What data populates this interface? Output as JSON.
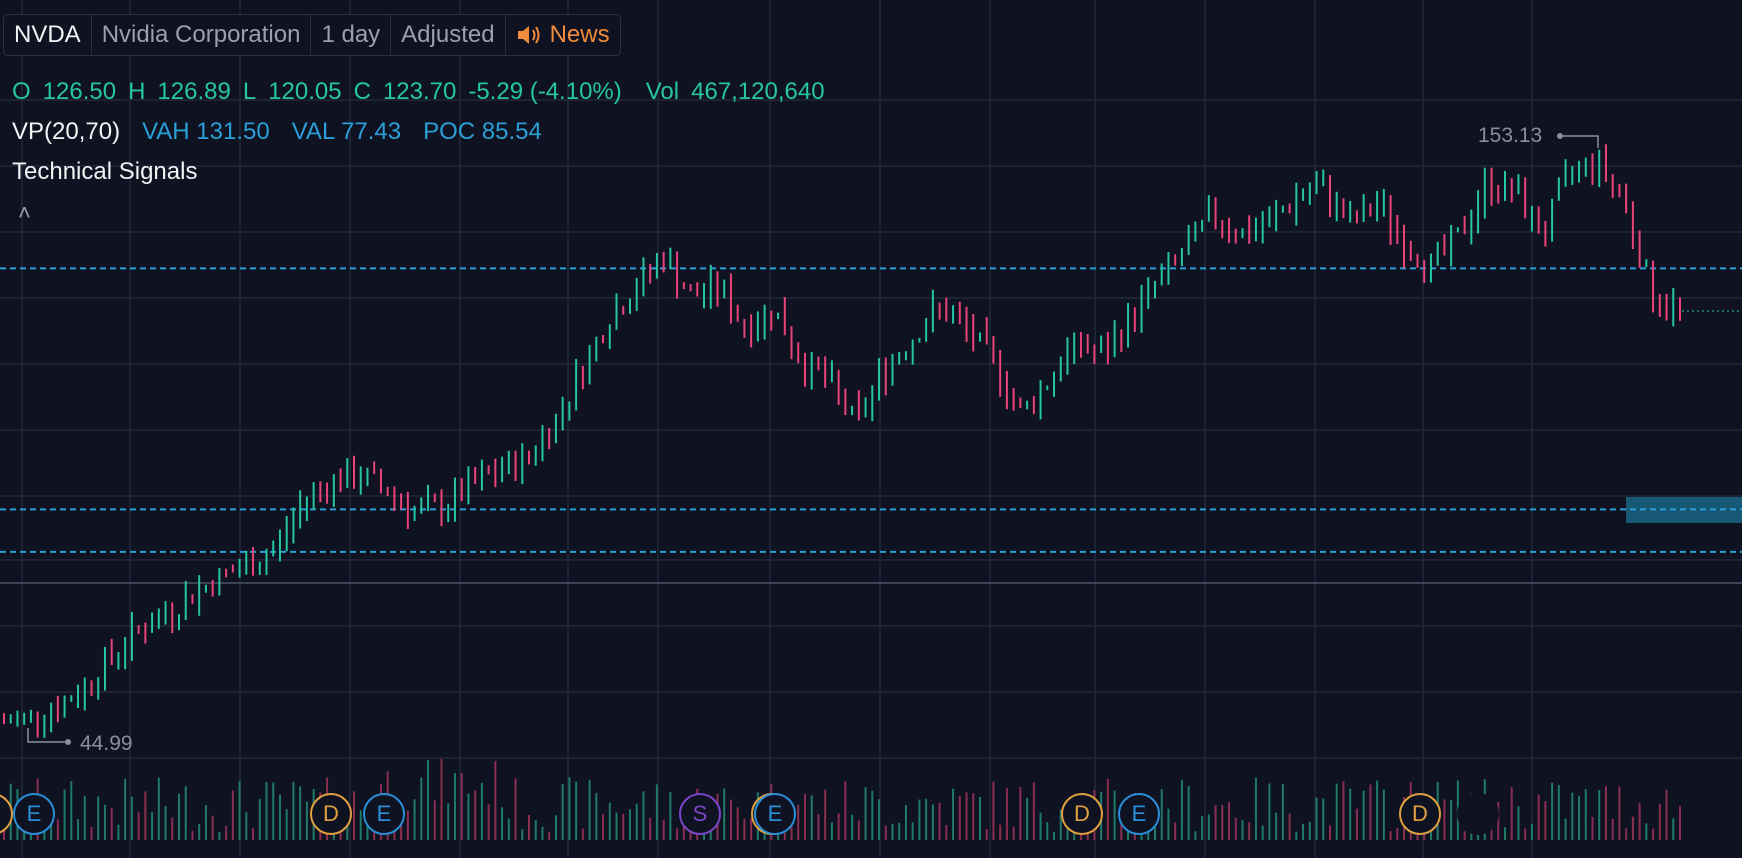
{
  "toolbar": {
    "symbol": "NVDA",
    "company": "Nvidia Corporation",
    "interval": "1 day",
    "adjustment": "Adjusted",
    "news": "News"
  },
  "ohlc": {
    "o_label": "O",
    "o": "126.50",
    "h_label": "H",
    "h": "126.89",
    "l_label": "L",
    "l": "120.05",
    "c_label": "C",
    "c": "123.70",
    "change": "-5.29 (-4.10%)",
    "vol_label": "Vol",
    "vol": "467,120,640"
  },
  "volume_profile": {
    "title": "VP(20,70)",
    "vah": "VAH 131.50",
    "val": "VAL 77.43",
    "poc": "POC 85.54"
  },
  "technical_signals": "Technical Signals",
  "collapse_caret": "˄",
  "annotations": {
    "high": "153.13",
    "low": "44.99"
  },
  "events": [
    "D",
    "E",
    "D",
    "E",
    "S",
    "D",
    "E",
    "D",
    "E",
    "D"
  ],
  "colors": {
    "up": "#26c6a0",
    "down": "#e8447a",
    "grid": "#22283a",
    "level": "#2a9fd8",
    "background": "#0e1221"
  },
  "chart_data": {
    "type": "ohlc",
    "symbol": "NVDA",
    "interval": "1 day",
    "price_high": 153.13,
    "price_low": 44.99,
    "last": {
      "open": 126.5,
      "high": 126.89,
      "low": 120.05,
      "close": 123.7,
      "volume": 467120640
    },
    "levels": {
      "VAH": 131.5,
      "POC": 85.54,
      "VAL": 77.43
    },
    "close_path": [
      44.99,
      46,
      48,
      52,
      58,
      63,
      66,
      70,
      73,
      75,
      79,
      88,
      91,
      92,
      89,
      85,
      86,
      90,
      93,
      95,
      102,
      112,
      122,
      128,
      134,
      126,
      128,
      120,
      124,
      114,
      110,
      102,
      112,
      118,
      124,
      120,
      114,
      104,
      110,
      117,
      115,
      122,
      129,
      135,
      142,
      138,
      140,
      145,
      147,
      140,
      144,
      136,
      132,
      138,
      148,
      146,
      138,
      150,
      152,
      144,
      126,
      123.7
    ],
    "grid": true
  }
}
